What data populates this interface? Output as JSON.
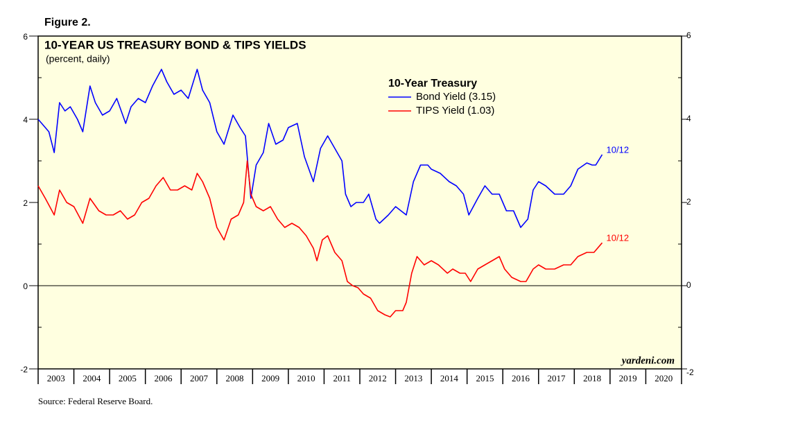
{
  "chart_data": {
    "type": "line",
    "figure_label": "Figure 2.",
    "title": "10-YEAR US TREASURY BOND & TIPS YIELDS",
    "subtitle": "(percent, daily)",
    "legend_title": "10-Year Treasury",
    "watermark": "yardeni.com",
    "source": "Source: Federal Reserve Board.",
    "xlim": [
      2003,
      2021
    ],
    "xticks": [
      {
        "value": 2003.5,
        "label": "2003"
      },
      {
        "value": 2004.5,
        "label": "2004"
      },
      {
        "value": 2005.5,
        "label": "2005"
      },
      {
        "value": 2006.5,
        "label": "2006"
      },
      {
        "value": 2007.5,
        "label": "2007"
      },
      {
        "value": 2008.5,
        "label": "2008"
      },
      {
        "value": 2009.5,
        "label": "2009"
      },
      {
        "value": 2010.5,
        "label": "2010"
      },
      {
        "value": 2011.5,
        "label": "2011"
      },
      {
        "value": 2012.5,
        "label": "2012"
      },
      {
        "value": 2013.5,
        "label": "2013"
      },
      {
        "value": 2014.5,
        "label": "2014"
      },
      {
        "value": 2015.5,
        "label": "2015"
      },
      {
        "value": 2016.5,
        "label": "2016"
      },
      {
        "value": 2017.5,
        "label": "2017"
      },
      {
        "value": 2018.5,
        "label": "2018"
      },
      {
        "value": 2019.5,
        "label": "2019"
      },
      {
        "value": 2020.5,
        "label": "2020"
      }
    ],
    "ylim": [
      -2,
      6
    ],
    "yticks": [
      -2,
      0,
      2,
      4,
      6
    ],
    "zero_line": true,
    "background": "#ffffe0",
    "series": [
      {
        "name": "Bond Yield (3.15)",
        "color": "#0000ff",
        "end_label": "10/12",
        "x": [
          2003.0,
          2003.1,
          2003.3,
          2003.45,
          2003.6,
          2003.75,
          2003.9,
          2004.1,
          2004.25,
          2004.45,
          2004.6,
          2004.8,
          2005.0,
          2005.2,
          2005.45,
          2005.6,
          2005.8,
          2006.0,
          2006.2,
          2006.45,
          2006.6,
          2006.8,
          2007.0,
          2007.2,
          2007.45,
          2007.6,
          2007.8,
          2008.0,
          2008.2,
          2008.45,
          2008.65,
          2008.8,
          2008.95,
          2009.1,
          2009.3,
          2009.45,
          2009.65,
          2009.85,
          2010.0,
          2010.25,
          2010.45,
          2010.7,
          2010.9,
          2011.1,
          2011.3,
          2011.5,
          2011.6,
          2011.75,
          2011.9,
          2012.1,
          2012.25,
          2012.45,
          2012.55,
          2012.8,
          2013.0,
          2013.3,
          2013.5,
          2013.7,
          2013.9,
          2014.0,
          2014.25,
          2014.5,
          2014.7,
          2014.9,
          2015.05,
          2015.3,
          2015.5,
          2015.7,
          2015.9,
          2016.1,
          2016.3,
          2016.5,
          2016.7,
          2016.85,
          2017.0,
          2017.2,
          2017.45,
          2017.7,
          2017.9,
          2018.1,
          2018.35,
          2018.5,
          2018.6,
          2018.78
        ],
        "values": [
          4.0,
          3.9,
          3.7,
          3.2,
          4.4,
          4.2,
          4.3,
          4.0,
          3.7,
          4.8,
          4.4,
          4.1,
          4.2,
          4.5,
          3.9,
          4.3,
          4.5,
          4.4,
          4.8,
          5.2,
          4.9,
          4.6,
          4.7,
          4.5,
          5.2,
          4.7,
          4.4,
          3.7,
          3.4,
          4.1,
          3.8,
          3.6,
          2.1,
          2.9,
          3.2,
          3.9,
          3.4,
          3.5,
          3.8,
          3.9,
          3.1,
          2.5,
          3.3,
          3.6,
          3.3,
          3.0,
          2.2,
          1.9,
          2.0,
          2.0,
          2.2,
          1.6,
          1.5,
          1.7,
          1.9,
          1.7,
          2.5,
          2.9,
          2.9,
          2.8,
          2.7,
          2.5,
          2.4,
          2.2,
          1.7,
          2.1,
          2.4,
          2.2,
          2.2,
          1.8,
          1.8,
          1.4,
          1.6,
          2.3,
          2.5,
          2.4,
          2.2,
          2.2,
          2.4,
          2.8,
          2.95,
          2.9,
          2.9,
          3.15
        ]
      },
      {
        "name": "TIPS Yield (1.03)",
        "color": "#ff0000",
        "end_label": "10/12",
        "x": [
          2003.0,
          2003.2,
          2003.45,
          2003.6,
          2003.8,
          2004.0,
          2004.25,
          2004.45,
          2004.7,
          2004.9,
          2005.1,
          2005.3,
          2005.5,
          2005.7,
          2005.9,
          2006.1,
          2006.3,
          2006.5,
          2006.7,
          2006.9,
          2007.1,
          2007.3,
          2007.45,
          2007.6,
          2007.8,
          2008.0,
          2008.2,
          2008.4,
          2008.6,
          2008.75,
          2008.85,
          2008.95,
          2009.1,
          2009.3,
          2009.5,
          2009.7,
          2009.9,
          2010.1,
          2010.3,
          2010.5,
          2010.7,
          2010.8,
          2010.95,
          2011.1,
          2011.3,
          2011.5,
          2011.65,
          2011.8,
          2011.95,
          2012.1,
          2012.3,
          2012.5,
          2012.7,
          2012.85,
          2013.0,
          2013.2,
          2013.3,
          2013.45,
          2013.6,
          2013.8,
          2014.0,
          2014.2,
          2014.45,
          2014.6,
          2014.8,
          2014.95,
          2015.1,
          2015.3,
          2015.5,
          2015.7,
          2015.9,
          2016.05,
          2016.25,
          2016.5,
          2016.65,
          2016.85,
          2017.0,
          2017.2,
          2017.45,
          2017.7,
          2017.9,
          2018.1,
          2018.35,
          2018.55,
          2018.78
        ],
        "values": [
          2.4,
          2.1,
          1.7,
          2.3,
          2.0,
          1.9,
          1.5,
          2.1,
          1.8,
          1.7,
          1.7,
          1.8,
          1.6,
          1.7,
          2.0,
          2.1,
          2.4,
          2.6,
          2.3,
          2.3,
          2.4,
          2.3,
          2.7,
          2.5,
          2.1,
          1.4,
          1.1,
          1.6,
          1.7,
          2.0,
          3.0,
          2.2,
          1.9,
          1.8,
          1.9,
          1.6,
          1.4,
          1.5,
          1.4,
          1.2,
          0.9,
          0.6,
          1.1,
          1.2,
          0.8,
          0.6,
          0.1,
          0.0,
          -0.05,
          -0.2,
          -0.3,
          -0.6,
          -0.7,
          -0.75,
          -0.6,
          -0.6,
          -0.4,
          0.3,
          0.7,
          0.5,
          0.6,
          0.5,
          0.3,
          0.4,
          0.3,
          0.3,
          0.1,
          0.4,
          0.5,
          0.6,
          0.7,
          0.4,
          0.2,
          0.1,
          0.1,
          0.4,
          0.5,
          0.4,
          0.4,
          0.5,
          0.5,
          0.7,
          0.8,
          0.8,
          1.03
        ]
      }
    ]
  }
}
